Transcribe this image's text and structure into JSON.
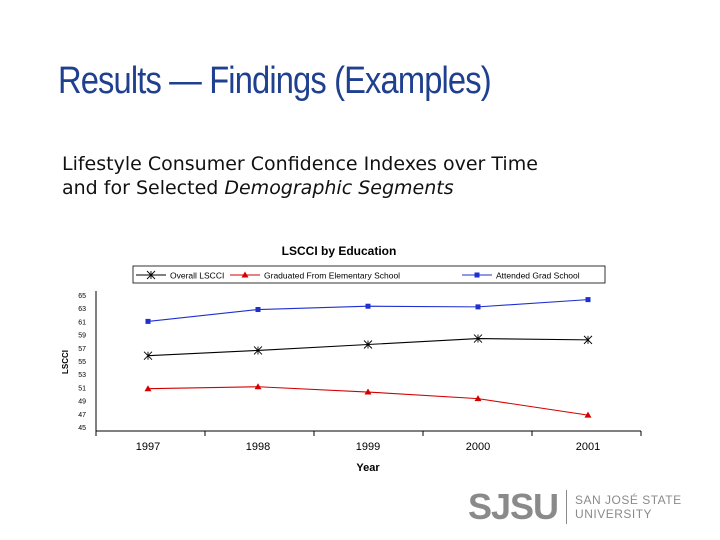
{
  "slide": {
    "title": "Results — Findings (Examples)",
    "subtitle_line1": "Lifestyle Consumer Confidence Indexes over Time",
    "subtitle_line2_plain": "and for Selected ",
    "subtitle_line2_italic": "Demographic Segments"
  },
  "logo": {
    "mark": "SJSU",
    "line1": "SAN JOSÉ STATE",
    "line2": "UNIVERSITY"
  },
  "chart_data": {
    "type": "line",
    "title": "LSCCI by Education",
    "xlabel": "Year",
    "ylabel": "LSCCI",
    "categories": [
      "1997",
      "1998",
      "1999",
      "2000",
      "2001"
    ],
    "yticks": [
      "65",
      "63",
      "61",
      "59",
      "57",
      "55",
      "53",
      "51",
      "49",
      "47",
      "45"
    ],
    "ylim": [
      45,
      65
    ],
    "legend_position": "top",
    "series": [
      {
        "name": "Overall LSCCI",
        "values": [
          55.8,
          56.6,
          57.5,
          58.4,
          58.2
        ],
        "color": "#000000",
        "marker": "asterisk"
      },
      {
        "name": "Graduated From Elementary School",
        "values": [
          50.8,
          51.1,
          50.3,
          49.3,
          46.8
        ],
        "color": "#d40000",
        "marker": "triangle"
      },
      {
        "name": "Attended Grad School",
        "values": [
          61.0,
          62.8,
          63.3,
          63.2,
          64.3
        ],
        "color": "#1f2fd0",
        "marker": "square"
      }
    ]
  }
}
